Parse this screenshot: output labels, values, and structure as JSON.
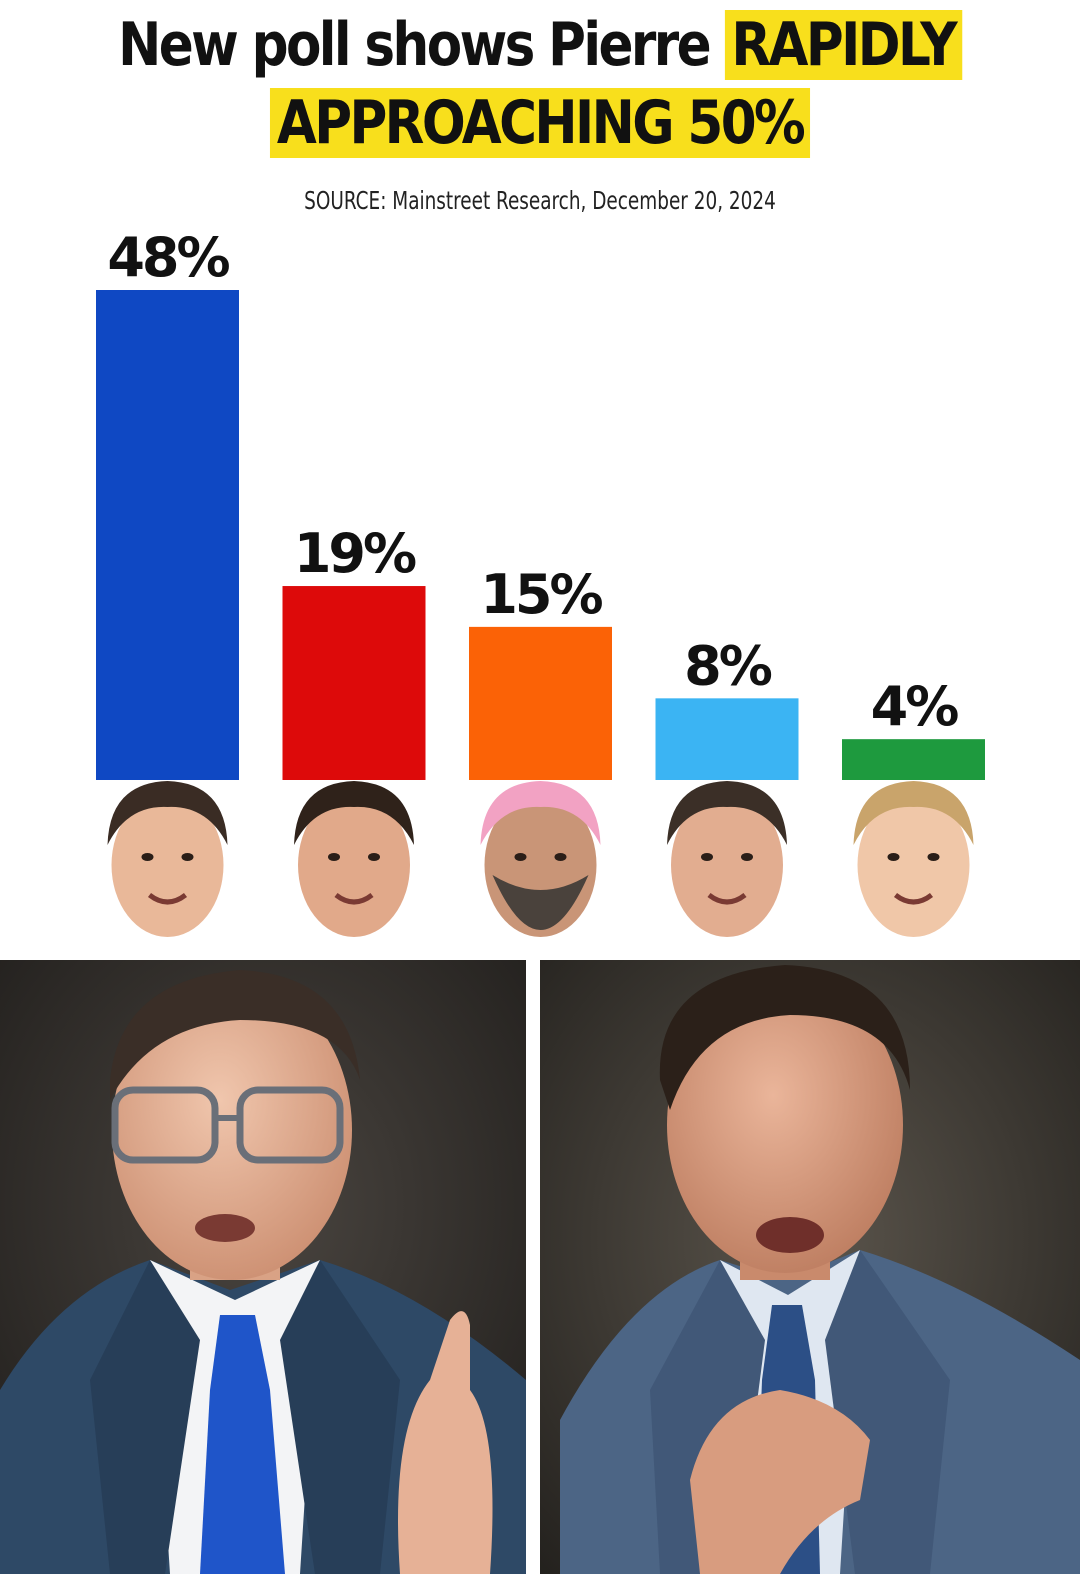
{
  "header": {
    "title_plain": "New poll shows Pierre",
    "title_highlight_1": "RAPIDLY",
    "title_highlight_2": "APPROACHING 50%",
    "source": "SOURCE: Mainstreet Research, December 20, 2024",
    "highlight_color": "#f8df1c"
  },
  "chart_data": {
    "type": "bar",
    "categories": [
      "",
      "",
      "",
      "",
      ""
    ],
    "values": [
      48,
      19,
      15,
      8,
      4
    ],
    "labels": [
      "48%",
      "19%",
      "15%",
      "8%",
      "4%"
    ],
    "colors": [
      "#0f48c3",
      "#dd0a0a",
      "#fb6206",
      "#3bb4f3",
      "#1e9a3e"
    ],
    "title": "New poll shows Pierre RAPIDLY APPROACHING 50%",
    "xlabel": "",
    "ylabel": "",
    "ylim": [
      0,
      48
    ],
    "grid": false,
    "legend": "none"
  },
  "photos": {
    "left": {
      "suit": "#2e4966",
      "tie": "#1f55c9",
      "background": "#2a2826"
    },
    "right": {
      "suit": "#4c6585",
      "tie": "#2c4f86",
      "background": "#2f2d29"
    }
  }
}
